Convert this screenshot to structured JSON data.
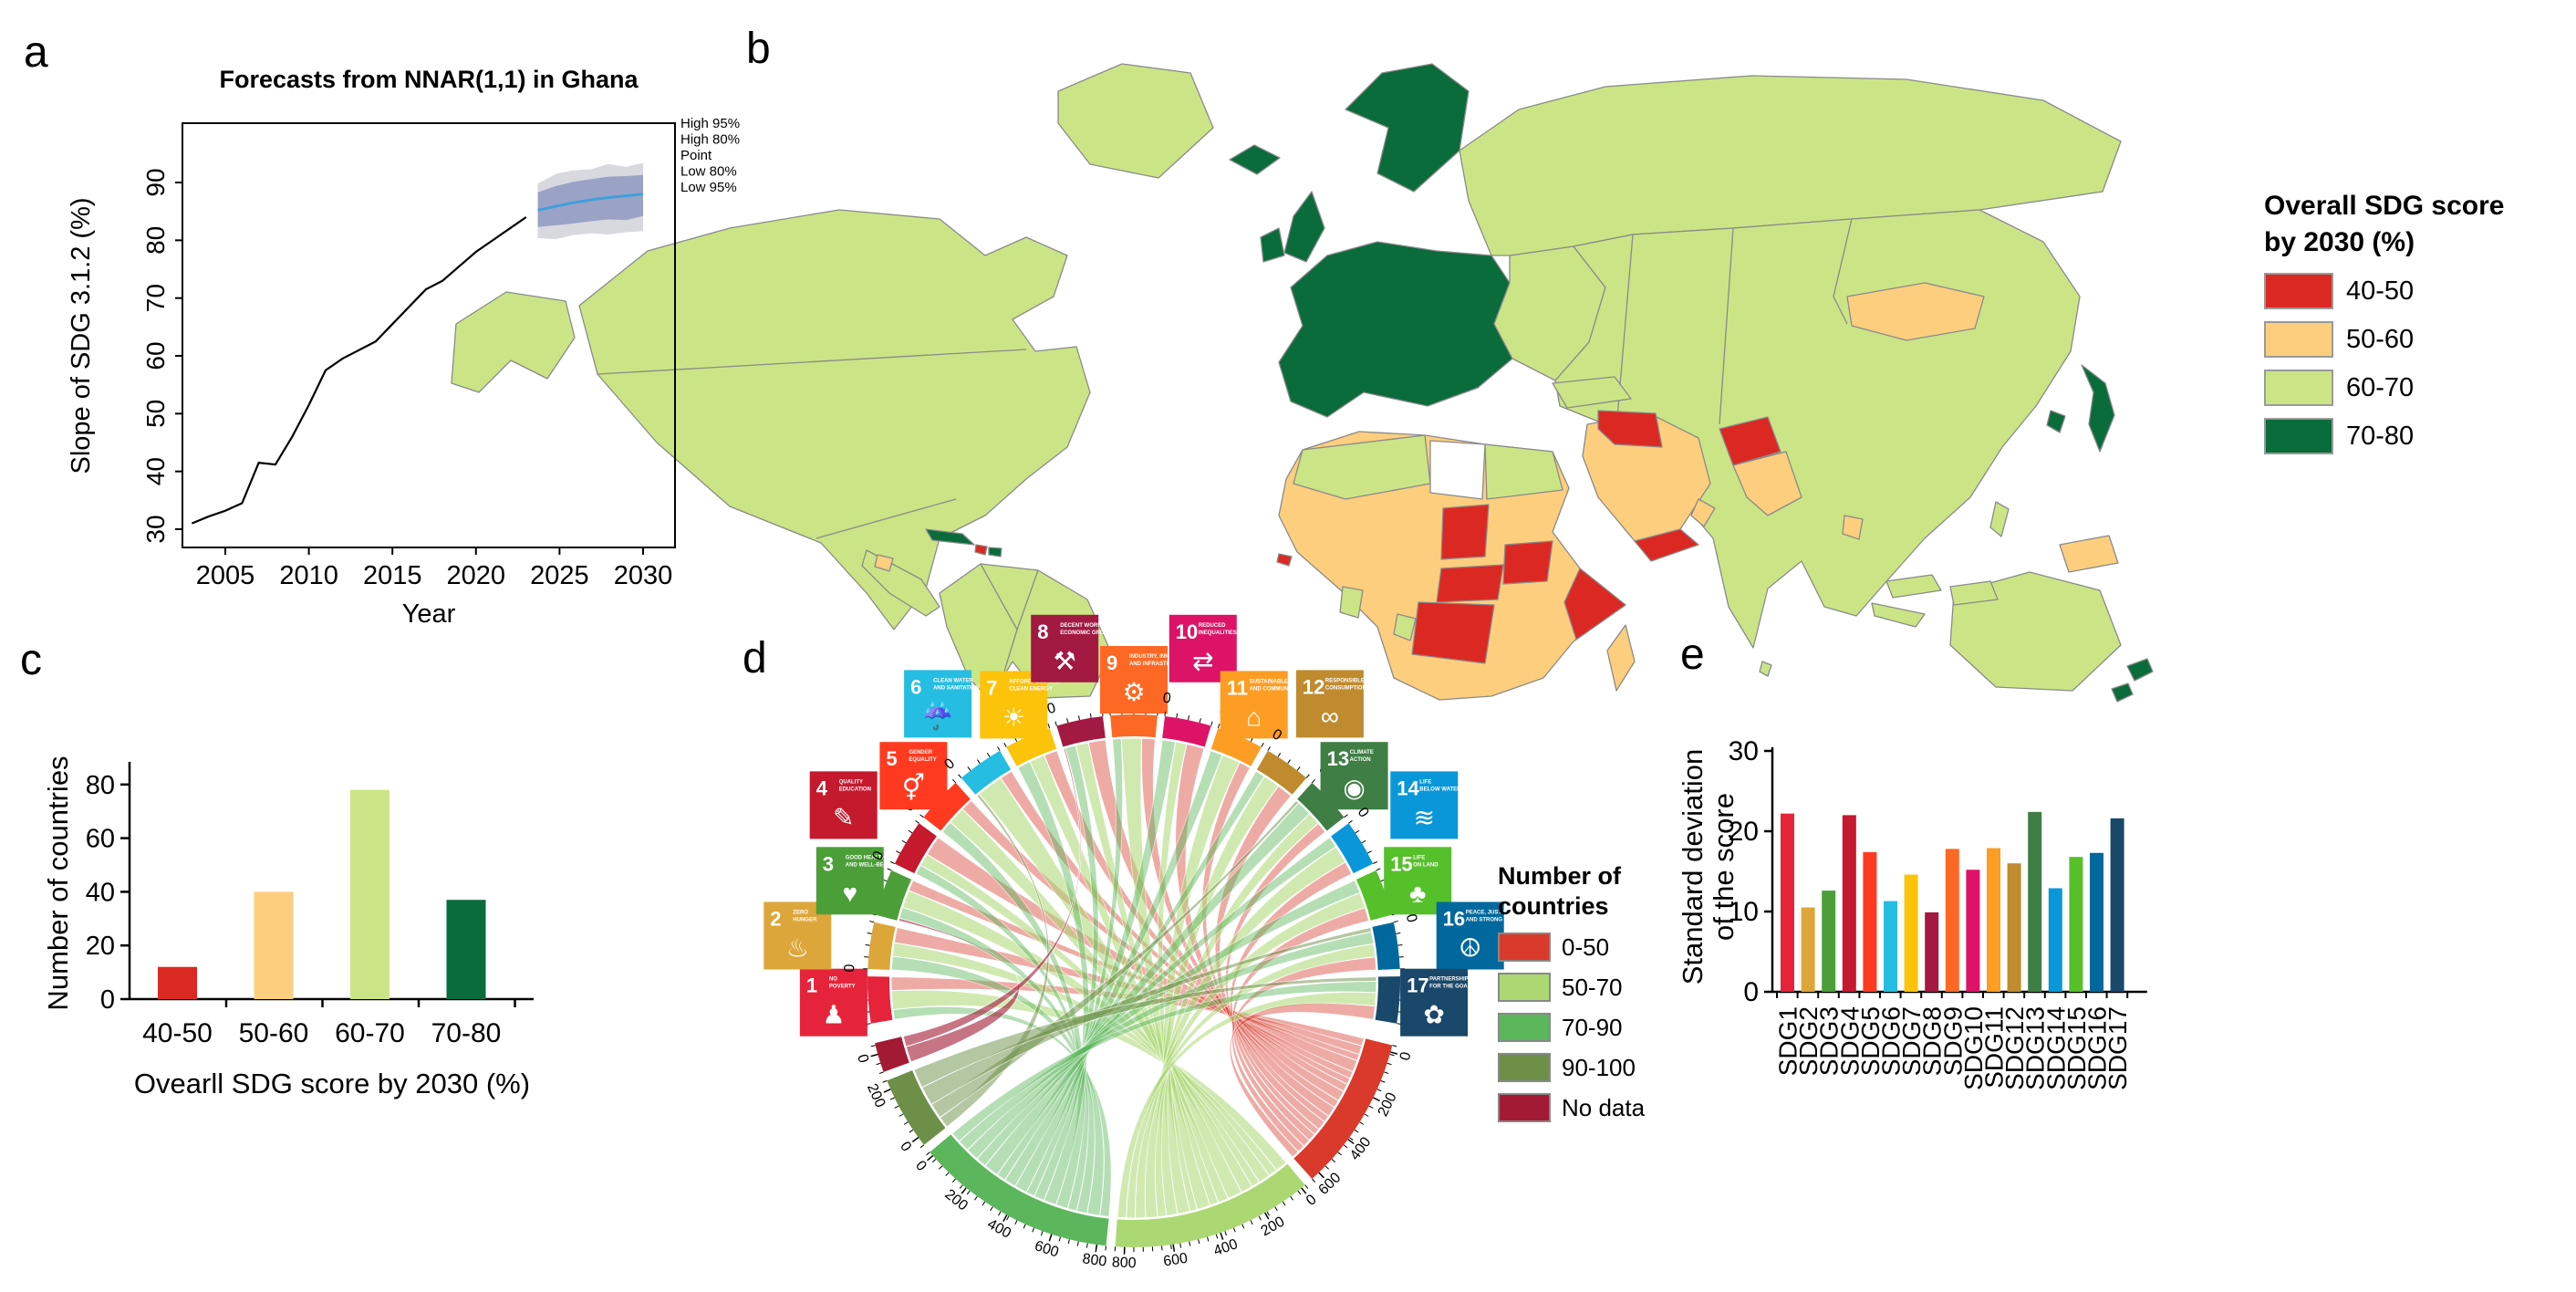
{
  "figure": {
    "panel_labels": [
      "a",
      "b",
      "c",
      "d",
      "e"
    ]
  },
  "chart_data": [
    {
      "panel": "a",
      "type": "line",
      "title": "Forecasts from NNAR(1,1) in Ghana",
      "xlabel": "Year",
      "ylabel": "Slope of SDG 3.1.2 (%)",
      "xlim": [
        2002.5,
        2031
      ],
      "ylim": [
        28,
        96
      ],
      "xticks": [
        2005,
        2010,
        2015,
        2020,
        2025,
        2030
      ],
      "yticks": [
        30,
        40,
        50,
        60,
        70,
        80,
        90
      ],
      "history_x": [
        2003,
        2004,
        2005,
        2006,
        2007,
        2008,
        2009,
        2010,
        2011,
        2012,
        2013,
        2014,
        2015,
        2016,
        2017,
        2018,
        2019,
        2020,
        2021,
        2022,
        2023
      ],
      "history_y": [
        31,
        32.2,
        33.2,
        34.5,
        41.5,
        41.2,
        46,
        51.5,
        57.5,
        59.5,
        61,
        62.5,
        65.5,
        68.5,
        71.5,
        73,
        75.5,
        78,
        80,
        82,
        84
      ],
      "forecast_x": [
        2023.7,
        2024.8,
        2025.8,
        2026.9,
        2027.9,
        2029,
        2030
      ],
      "forecast_point": [
        85.2,
        85.9,
        86.5,
        87.0,
        87.4,
        87.7,
        88.0
      ],
      "hi80": [
        88.3,
        89.4,
        90.1,
        90.6,
        91.0,
        91.1,
        91.3
      ],
      "lo80": [
        82.3,
        82.6,
        82.9,
        83.3,
        83.6,
        83.5,
        84.2
      ],
      "hi95": [
        89.8,
        91.5,
        92.1,
        92.3,
        93.2,
        92.7,
        93.4
      ],
      "lo95": [
        80.4,
        80.2,
        80.9,
        81.2,
        81.0,
        81.4,
        81.6
      ],
      "legend": [
        "High 95%",
        "High 80%",
        "Point",
        "Low 80%",
        "Low 95%"
      ],
      "colors": {
        "history": "#000000",
        "point": "#3FA0DC",
        "band80": "#9AA3C6",
        "band95": "#D8D8DF"
      }
    },
    {
      "panel": "b",
      "type": "choropleth",
      "legend_title_lines": [
        "Overall SDG score",
        "by 2030 (%)"
      ],
      "legend": [
        {
          "label": "40-50",
          "color": "#DC2823"
        },
        {
          "label": "50-60",
          "color": "#FDCE7E"
        },
        {
          "label": "60-70",
          "color": "#CBE586"
        },
        {
          "label": "70-80",
          "color": "#0A6B3B"
        }
      ],
      "no_data_color": "#FFFFFF",
      "border_color": "#8A8A8A",
      "regions": {
        "alaska": "60-70",
        "north-america": "60-70",
        "greenland": "60-70",
        "iceland": "70-80",
        "cuba": "70-80",
        "haiti": "40-50",
        "dominican-republic": "70-80",
        "guatemala": "50-60",
        "central-america": "60-70",
        "south-america": "60-70",
        "scandinavia": "70-80",
        "united-kingdom": "70-80",
        "ireland": "70-80",
        "western-europe": "70-80",
        "eastern-europe": "60-70",
        "russia": "60-70",
        "asia": "60-70",
        "mongolia": "50-60",
        "afghanistan": "40-50",
        "pakistan": "50-60",
        "bangladesh": "50-60",
        "arabia": "50-60",
        "iraq-syria": "40-50",
        "yemen": "40-50",
        "oman": "50-60",
        "turkey": "60-70",
        "japan": "70-80",
        "south-korea": "70-80",
        "africa": "50-60",
        "maghreb": "60-70",
        "libya": "no-data",
        "egypt": "60-70",
        "chad": "40-50",
        "south-sudan": "40-50",
        "central-african-republic": "40-50",
        "dr-congo": "40-50",
        "somalia": "40-50",
        "guinea-bissau": "40-50",
        "ghana": "60-70",
        "gabon": "60-70",
        "madagascar": "50-60",
        "australia": "60-70",
        "papua-new-guinea": "50-60",
        "indonesia-1": "60-70",
        "indonesia-2": "60-70",
        "java": "60-70",
        "philippines": "60-70",
        "new-zealand-north": "70-80",
        "new-zealand-south": "70-80",
        "sri-lanka": "60-70"
      }
    },
    {
      "panel": "c",
      "type": "bar",
      "categories": [
        "40-50",
        "50-60",
        "60-70",
        "70-80"
      ],
      "values": [
        12,
        40,
        78,
        37
      ],
      "bar_colors": [
        "#DC2823",
        "#FDCE7E",
        "#CBE586",
        "#0A6B3B"
      ],
      "xlabel": "Ovearll SDG score by 2030 (%)",
      "ylabel": "Number of countries",
      "yticks": [
        0,
        20,
        40,
        60,
        80
      ],
      "ylim": [
        0,
        88
      ]
    },
    {
      "panel": "d",
      "type": "chord",
      "legend_title_lines": [
        "Number of",
        "countries"
      ],
      "legend": [
        {
          "key": "0-50",
          "label": "0-50",
          "color": "#D93A2B"
        },
        {
          "key": "50-70",
          "label": "50-70",
          "color": "#ABD873"
        },
        {
          "key": "70-90",
          "label": "70-90",
          "color": "#5CB75C"
        },
        {
          "key": "90-100",
          "label": "90-100",
          "color": "#6D8F47"
        },
        {
          "key": "nodata",
          "label": "No data",
          "color": "#A31A35"
        }
      ],
      "sector_tick_label": "0",
      "sectors": [
        {
          "num": "1",
          "t1": "NO",
          "t2": "POVERTY",
          "color": "#E5243B",
          "glyph": "♟"
        },
        {
          "num": "2",
          "t1": "ZERO",
          "t2": "HUNGER",
          "color": "#DDA63A",
          "glyph": "♨"
        },
        {
          "num": "3",
          "t1": "GOOD HEALTH",
          "t2": "AND WELL-BEING",
          "color": "#4C9F38",
          "glyph": "♥"
        },
        {
          "num": "4",
          "t1": "QUALITY",
          "t2": "EDUCATION",
          "color": "#C5192D",
          "glyph": "✎"
        },
        {
          "num": "5",
          "t1": "GENDER",
          "t2": "EQUALITY",
          "color": "#FF3A21",
          "glyph": "⚥"
        },
        {
          "num": "6",
          "t1": "CLEAN WATER",
          "t2": "AND SANITATION",
          "color": "#26BDE2",
          "glyph": "☔"
        },
        {
          "num": "7",
          "t1": "AFFORDABLE AND",
          "t2": "CLEAN ENERGY",
          "color": "#FCC30B",
          "glyph": "☀"
        },
        {
          "num": "8",
          "t1": "DECENT WORK AND",
          "t2": "ECONOMIC GROWTH",
          "color": "#A21942",
          "glyph": "⚒"
        },
        {
          "num": "9",
          "t1": "INDUSTRY, INNOVATION",
          "t2": "AND INFRASTRUCTURE",
          "color": "#FD6925",
          "glyph": "⚙"
        },
        {
          "num": "10",
          "t1": "REDUCED",
          "t2": "INEQUALITIES",
          "color": "#DD1367",
          "glyph": "⇄"
        },
        {
          "num": "11",
          "t1": "SUSTAINABLE CITIES",
          "t2": "AND COMMUNITIES",
          "color": "#FD9D24",
          "glyph": "⌂"
        },
        {
          "num": "12",
          "t1": "RESPONSIBLE",
          "t2": "CONSUMPTION",
          "color": "#BF8B2E",
          "glyph": "∞"
        },
        {
          "num": "13",
          "t1": "CLIMATE",
          "t2": "ACTION",
          "color": "#3F7E44",
          "glyph": "◉"
        },
        {
          "num": "14",
          "t1": "LIFE",
          "t2": "BELOW WATER",
          "color": "#0A97D9",
          "glyph": "≋"
        },
        {
          "num": "15",
          "t1": "LIFE",
          "t2": "ON LAND",
          "color": "#56C02B",
          "glyph": "♣"
        },
        {
          "num": "16",
          "t1": "PEACE, JUSTICE",
          "t2": "AND STRONG INSTITUTIONS",
          "color": "#00689D",
          "glyph": "☮"
        },
        {
          "num": "17",
          "t1": "PARTNERSHIPS",
          "t2": "FOR THE GOALS",
          "color": "#19486A",
          "glyph": "✿"
        }
      ],
      "bottom_segments": [
        {
          "key": "nodata",
          "color": "#A31A35",
          "a0": 160,
          "a1": 166.5,
          "ticks": [
            {
              "v": "0",
              "a": 164
            }
          ]
        },
        {
          "key": "90-100",
          "color": "#6D8F47",
          "a0": 142,
          "a1": 158,
          "ticks": [
            {
              "v": "0",
              "a": 144
            },
            {
              "v": "200",
              "a": 156
            }
          ]
        },
        {
          "key": "70-90",
          "color": "#5CB75C",
          "a0": 96,
          "a1": 140,
          "ticks": [
            {
              "v": "0",
              "a": 139
            },
            {
              "v": "200",
              "a": 129
            },
            {
              "v": "400",
              "a": 118.5
            },
            {
              "v": "600",
              "a": 108
            },
            {
              "v": "800",
              "a": 98
            }
          ]
        },
        {
          "key": "50-70",
          "color": "#ABD873",
          "a0": 50,
          "a1": 94,
          "ticks": [
            {
              "v": "800",
              "a": 92
            },
            {
              "v": "600",
              "a": 81.5
            },
            {
              "v": "400",
              "a": 71
            },
            {
              "v": "200",
              "a": 60.5
            },
            {
              "v": "0",
              "a": 51
            }
          ]
        },
        {
          "key": "0-50",
          "color": "#D93A2B",
          "a0": 14,
          "a1": 48,
          "ticks": [
            {
              "v": "600",
              "a": 46
            },
            {
              "v": "400",
              "a": 36.5
            },
            {
              "v": "200",
              "a": 26
            },
            {
              "v": "0",
              "a": 15.5
            }
          ]
        }
      ],
      "ribbons": [
        [
          0,
          "50-70",
          0.42
        ],
        [
          0,
          "70-90",
          0.22
        ],
        [
          0,
          "0-50",
          0.3
        ],
        [
          1,
          "50-70",
          0.3
        ],
        [
          1,
          "70-90",
          0.3
        ],
        [
          1,
          "0-50",
          0.34
        ],
        [
          2,
          "nodata",
          0.06
        ],
        [
          2,
          "50-70",
          0.4
        ],
        [
          2,
          "70-90",
          0.25
        ],
        [
          2,
          "0-50",
          0.25
        ],
        [
          3,
          "50-70",
          0.28
        ],
        [
          3,
          "70-90",
          0.22
        ],
        [
          3,
          "0-50",
          0.45
        ],
        [
          4,
          "50-70",
          0.4
        ],
        [
          4,
          "70-90",
          0.28
        ],
        [
          4,
          "0-50",
          0.28
        ],
        [
          5,
          "90-100",
          0.06
        ],
        [
          5,
          "50-70",
          0.5
        ],
        [
          5,
          "0-50",
          0.24
        ],
        [
          6,
          "50-70",
          0.35
        ],
        [
          6,
          "70-90",
          0.3
        ],
        [
          6,
          "0-50",
          0.3
        ],
        [
          7,
          "nodata",
          0.04
        ],
        [
          7,
          "50-70",
          0.3
        ],
        [
          7,
          "70-90",
          0.25
        ],
        [
          7,
          "0-50",
          0.4
        ],
        [
          8,
          "50-70",
          0.45
        ],
        [
          8,
          "70-90",
          0.2
        ],
        [
          8,
          "0-50",
          0.3
        ],
        [
          9,
          "50-70",
          0.25
        ],
        [
          9,
          "70-90",
          0.3
        ],
        [
          9,
          "0-50",
          0.4
        ],
        [
          10,
          "50-70",
          0.42
        ],
        [
          10,
          "70-90",
          0.28
        ],
        [
          10,
          "0-50",
          0.26
        ],
        [
          11,
          "50-70",
          0.38
        ],
        [
          11,
          "70-90",
          0.22
        ],
        [
          11,
          "0-50",
          0.36
        ],
        [
          12,
          "90-100",
          0.08
        ],
        [
          12,
          "50-70",
          0.3
        ],
        [
          12,
          "70-90",
          0.35
        ],
        [
          12,
          "0-50",
          0.25
        ],
        [
          13,
          "50-70",
          0.4
        ],
        [
          13,
          "70-90",
          0.25
        ],
        [
          13,
          "0-50",
          0.3
        ],
        [
          14,
          "50-70",
          0.35
        ],
        [
          14,
          "70-90",
          0.3
        ],
        [
          14,
          "0-50",
          0.3
        ],
        [
          15,
          "90-100",
          0.1
        ],
        [
          15,
          "50-70",
          0.3
        ],
        [
          15,
          "70-90",
          0.28
        ],
        [
          15,
          "0-50",
          0.3
        ],
        [
          16,
          "90-100",
          0.1
        ],
        [
          16,
          "50-70",
          0.3
        ],
        [
          16,
          "70-90",
          0.25
        ],
        [
          16,
          "0-50",
          0.3
        ]
      ]
    },
    {
      "panel": "e",
      "type": "bar",
      "categories": [
        "SDG1",
        "SDG2",
        "SDG3",
        "SDG4",
        "SDG5",
        "SDG6",
        "SDG7",
        "SDG8",
        "SDG9",
        "SDG10",
        "SDG11",
        "SDG12",
        "SDG13",
        "SDG14",
        "SDG15",
        "SDG16",
        "SDG17"
      ],
      "values": [
        22.2,
        10.5,
        12.6,
        22.0,
        17.4,
        11.3,
        14.6,
        9.9,
        17.8,
        15.2,
        17.9,
        16.0,
        22.4,
        12.9,
        16.8,
        17.3,
        21.6
      ],
      "bar_colors": [
        "#E5243B",
        "#DDA63A",
        "#4C9F38",
        "#C5192D",
        "#FF3A21",
        "#26BDE2",
        "#FCC30B",
        "#A21942",
        "#FD6925",
        "#DD1367",
        "#FD9D24",
        "#BF8B2E",
        "#3F7E44",
        "#0A97D9",
        "#56C02B",
        "#00689D",
        "#19486A"
      ],
      "ylabel_lines": [
        "Standard deviation",
        "of the score"
      ],
      "yticks": [
        0,
        10,
        20,
        30
      ],
      "ylim": [
        0,
        30
      ]
    }
  ]
}
